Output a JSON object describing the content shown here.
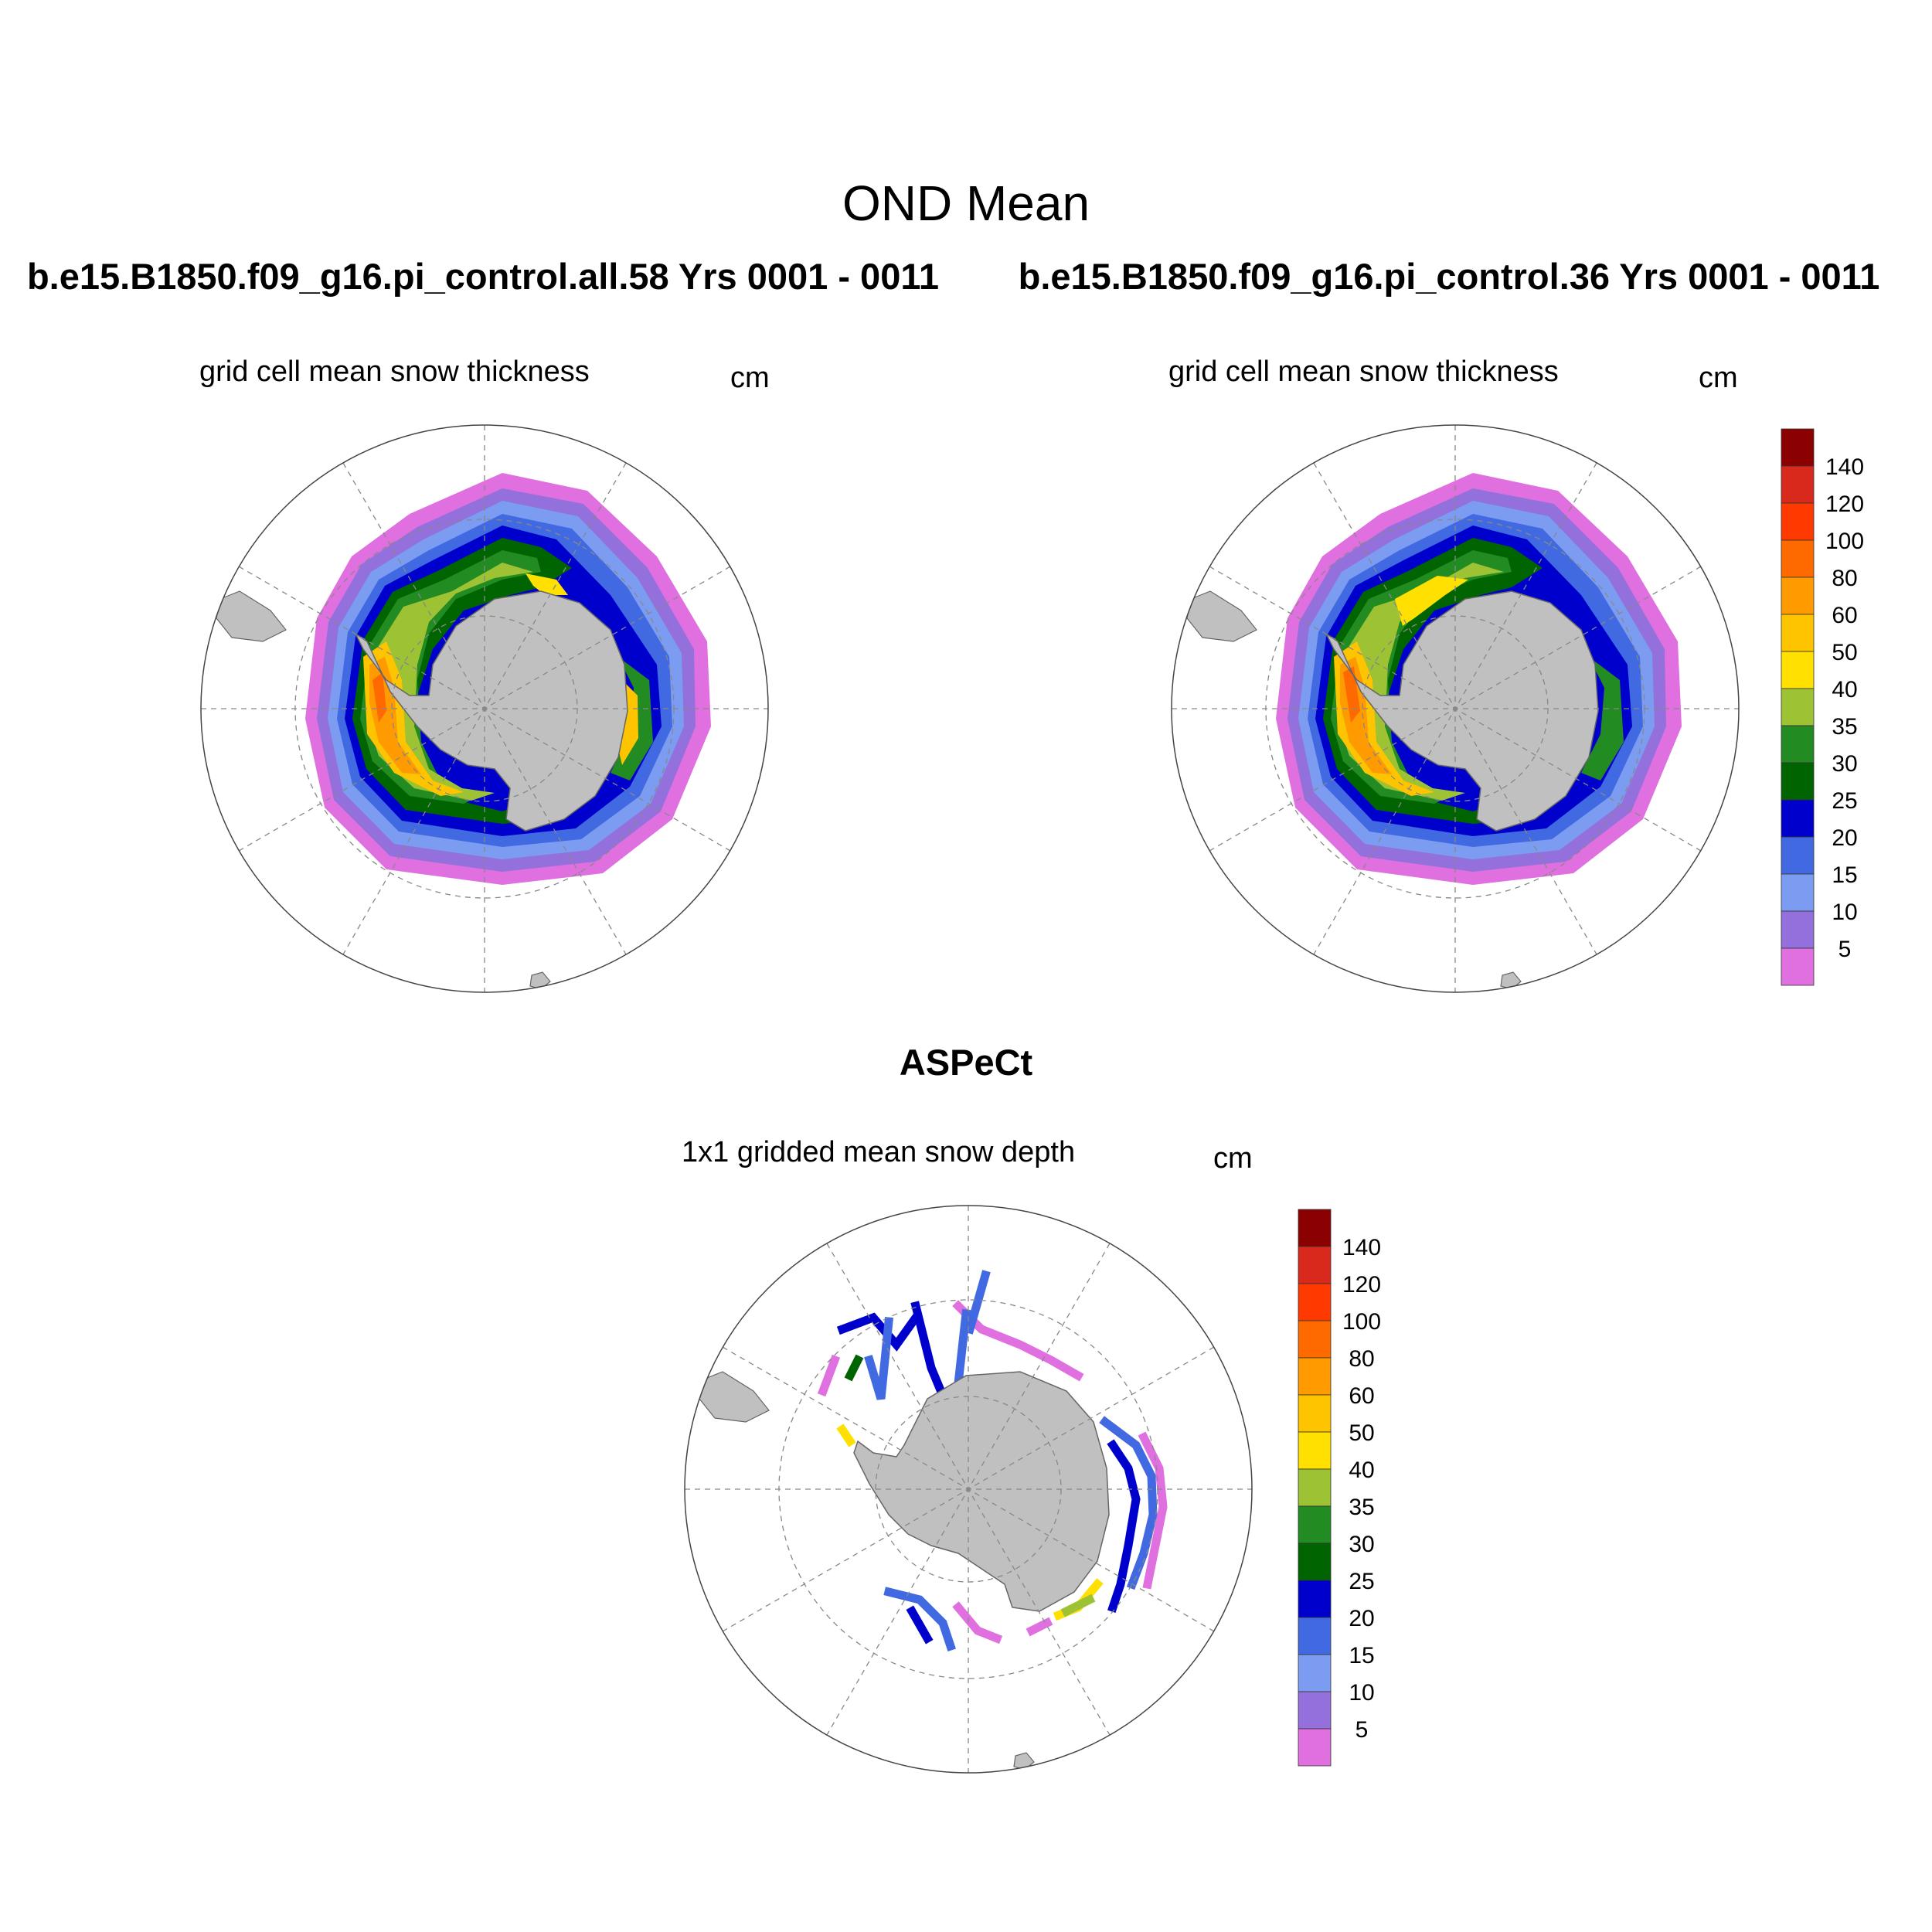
{
  "title": "OND Mean",
  "case_titles": [
    "b.e15.B1850.f09_g16.pi_control.all.58  Yrs 0001 - 0011",
    "b.e15.B1850.f09_g16.pi_control.36  Yrs 0001 - 0011"
  ],
  "panels": [
    {
      "label": "grid cell mean snow thickness",
      "unit": "cm"
    },
    {
      "label": "grid cell mean snow thickness",
      "unit": "cm"
    },
    {
      "label": "1x1 gridded mean snow depth",
      "unit": "cm"
    }
  ],
  "obs_title": "ASPeCt",
  "colorbar": {
    "labels": [
      "140",
      "120",
      "100",
      "80",
      "60",
      "50",
      "40",
      "35",
      "30",
      "25",
      "20",
      "15",
      "10",
      "5"
    ],
    "colors_top_to_bottom": [
      "#8b0000",
      "#d9291c",
      "#ff3a00",
      "#ff6a00",
      "#ff9a00",
      "#ffc400",
      "#ffe000",
      "#9dc233",
      "#228b22",
      "#006400",
      "#0000cd",
      "#4169e1",
      "#7b9cf0",
      "#9370db",
      "#e070e0"
    ]
  },
  "colors": {
    "land": "#c0c0c0",
    "grid": "#888888"
  }
}
